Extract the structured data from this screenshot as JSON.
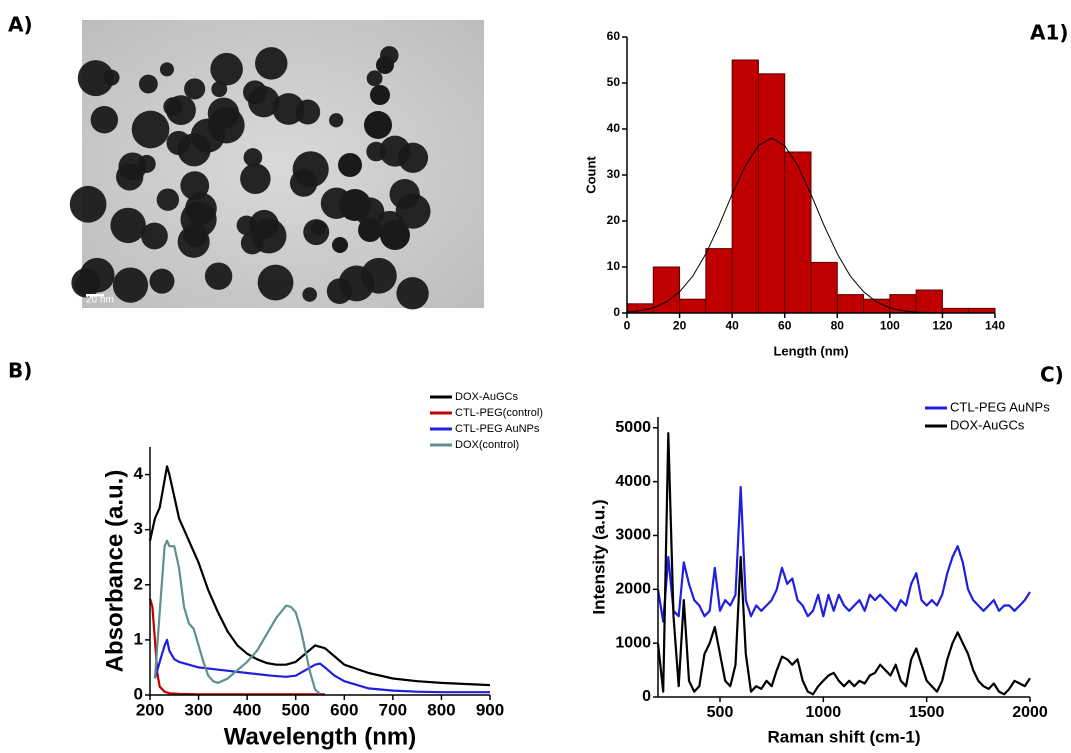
{
  "panel_labels": [
    "A)",
    "A1)",
    "B)",
    "C)"
  ],
  "micrograph": {
    "scale_bar": "20 nm"
  },
  "chart_data": [
    {
      "type": "histogram",
      "xlabel": "Length (nm)",
      "ylabel": "Count",
      "bins": [
        0,
        10,
        20,
        30,
        40,
        50,
        60,
        70,
        80,
        90,
        100,
        110,
        120,
        130,
        140
      ],
      "values": [
        2,
        10,
        3,
        14,
        55,
        52,
        35,
        11,
        4,
        3,
        4,
        5,
        1,
        1
      ],
      "color": "#c00000",
      "fit": {
        "color": "#000000",
        "x": [
          0,
          5,
          10,
          15,
          20,
          25,
          30,
          35,
          40,
          45,
          50,
          55,
          60,
          65,
          70,
          75,
          80,
          85,
          90,
          95,
          100,
          105,
          110,
          115,
          120,
          125,
          130,
          135,
          140
        ],
        "values": [
          0.2,
          0.5,
          1.1,
          2.4,
          4.6,
          8.0,
          12.9,
          19.0,
          25.8,
          32.0,
          36.4,
          38,
          36.4,
          32.0,
          25.8,
          19.0,
          12.9,
          8.0,
          4.6,
          2.4,
          1.1,
          0.5,
          0.2,
          0.1,
          0,
          0,
          0,
          0,
          0
        ]
      },
      "xlim": [
        0,
        140
      ],
      "xticks": [
        0,
        20,
        40,
        60,
        80,
        100,
        120,
        140
      ],
      "ylim": [
        0,
        60
      ],
      "yticks": [
        0,
        10,
        20,
        30,
        40,
        50,
        60
      ]
    },
    {
      "type": "line",
      "xlabel": "Wavelength (nm)",
      "ylabel": "Absorbance (a.u.)",
      "legend": "upper right",
      "xlim": [
        200,
        900
      ],
      "xticks": [
        200,
        300,
        400,
        500,
        600,
        700,
        800,
        900
      ],
      "ylim": [
        0,
        4.5
      ],
      "yticks": [
        0,
        1,
        2,
        3,
        4
      ],
      "series": [
        {
          "name": "DOX-AuGCs",
          "color": "#000000",
          "x": [
            200,
            210,
            220,
            230,
            235,
            240,
            250,
            260,
            280,
            300,
            320,
            340,
            360,
            380,
            400,
            420,
            440,
            460,
            480,
            500,
            520,
            540,
            560,
            580,
            600,
            650,
            700,
            750,
            800,
            850,
            900
          ],
          "values": [
            2.8,
            3.2,
            3.4,
            3.9,
            4.15,
            4.0,
            3.6,
            3.2,
            2.8,
            2.4,
            1.9,
            1.5,
            1.15,
            0.9,
            0.75,
            0.65,
            0.58,
            0.55,
            0.55,
            0.6,
            0.75,
            0.9,
            0.85,
            0.7,
            0.55,
            0.4,
            0.3,
            0.25,
            0.22,
            0.2,
            0.18
          ]
        },
        {
          "name": "CTL-PEG(control)",
          "color": "#c00000",
          "x": [
            200,
            205,
            210,
            215,
            220,
            230,
            240,
            260,
            300,
            400,
            500,
            560
          ],
          "values": [
            1.75,
            1.6,
            1.0,
            0.4,
            0.15,
            0.06,
            0.03,
            0.02,
            0.01,
            0.01,
            0.01,
            0.01
          ]
        },
        {
          "name": "CTL-PEG AuNPs",
          "color": "#1f1fe0",
          "x": [
            210,
            220,
            230,
            235,
            240,
            250,
            260,
            280,
            300,
            350,
            400,
            450,
            480,
            500,
            520,
            540,
            550,
            560,
            580,
            600,
            650,
            700,
            750,
            800,
            850,
            900
          ],
          "values": [
            0.3,
            0.6,
            0.9,
            1.0,
            0.8,
            0.65,
            0.6,
            0.55,
            0.5,
            0.45,
            0.4,
            0.35,
            0.33,
            0.35,
            0.45,
            0.55,
            0.57,
            0.5,
            0.35,
            0.25,
            0.12,
            0.08,
            0.06,
            0.05,
            0.05,
            0.05
          ]
        },
        {
          "name": "DOX(control)",
          "color": "#5f8f8f",
          "x": [
            210,
            220,
            230,
            235,
            240,
            250,
            260,
            270,
            280,
            290,
            300,
            310,
            320,
            330,
            340,
            360,
            380,
            400,
            420,
            440,
            460,
            480,
            490,
            500,
            510,
            520,
            530,
            540,
            550
          ],
          "values": [
            0.3,
            1.5,
            2.7,
            2.8,
            2.7,
            2.7,
            2.3,
            1.6,
            1.3,
            1.2,
            0.9,
            0.6,
            0.35,
            0.25,
            0.22,
            0.3,
            0.45,
            0.6,
            0.8,
            1.1,
            1.4,
            1.62,
            1.6,
            1.5,
            1.2,
            0.8,
            0.4,
            0.1,
            0.02
          ]
        }
      ]
    },
    {
      "type": "line",
      "xlabel": "Raman shift (cm-1)",
      "ylabel": "Intensity (a.u.)",
      "legend": "upper right",
      "xlim": [
        200,
        2000
      ],
      "xticks": [
        500,
        1000,
        1500,
        2000
      ],
      "ylim": [
        0,
        5200
      ],
      "yticks": [
        0,
        1000,
        2000,
        3000,
        4000,
        5000
      ],
      "x": [
        200,
        225,
        250,
        275,
        300,
        325,
        350,
        375,
        400,
        425,
        450,
        475,
        500,
        525,
        550,
        575,
        600,
        625,
        650,
        675,
        700,
        725,
        750,
        775,
        800,
        825,
        850,
        875,
        900,
        925,
        950,
        975,
        1000,
        1025,
        1050,
        1075,
        1100,
        1125,
        1150,
        1175,
        1200,
        1225,
        1250,
        1275,
        1300,
        1325,
        1350,
        1375,
        1400,
        1425,
        1450,
        1475,
        1500,
        1525,
        1550,
        1575,
        1600,
        1625,
        1650,
        1675,
        1700,
        1725,
        1750,
        1775,
        1800,
        1825,
        1850,
        1875,
        1900,
        1925,
        1950,
        1975,
        2000
      ],
      "series": [
        {
          "name": "CTL-PEG AuNPs",
          "color": "#1f1fe0",
          "values": [
            2000,
            1400,
            2600,
            1600,
            1500,
            2500,
            2100,
            1800,
            1700,
            1500,
            1600,
            2400,
            1600,
            1800,
            1700,
            1900,
            3900,
            1800,
            1500,
            1700,
            1600,
            1700,
            1800,
            2000,
            2400,
            2100,
            2200,
            1800,
            1700,
            1500,
            1600,
            1900,
            1500,
            1900,
            1600,
            1900,
            1700,
            1600,
            1700,
            1800,
            1600,
            1900,
            1800,
            1900,
            1800,
            1700,
            1600,
            1800,
            1700,
            2100,
            2300,
            1800,
            1700,
            1800,
            1700,
            1900,
            2300,
            2600,
            2800,
            2500,
            2000,
            1800,
            1700,
            1600,
            1700,
            1800,
            1600,
            1700,
            1700,
            1600,
            1700,
            1800,
            1950
          ]
        },
        {
          "name": "DOX-AuGCs",
          "color": "#000000",
          "values": [
            1000,
            100,
            4900,
            1500,
            200,
            1800,
            300,
            100,
            200,
            800,
            1000,
            1300,
            800,
            300,
            200,
            600,
            2600,
            800,
            100,
            200,
            150,
            300,
            200,
            500,
            750,
            700,
            600,
            700,
            300,
            100,
            50,
            200,
            300,
            400,
            450,
            300,
            200,
            300,
            200,
            300,
            250,
            400,
            450,
            600,
            500,
            400,
            600,
            300,
            200,
            700,
            900,
            600,
            300,
            200,
            100,
            300,
            700,
            1000,
            1200,
            1000,
            800,
            500,
            300,
            200,
            150,
            250,
            100,
            50,
            150,
            300,
            250,
            200,
            350
          ]
        }
      ]
    }
  ]
}
